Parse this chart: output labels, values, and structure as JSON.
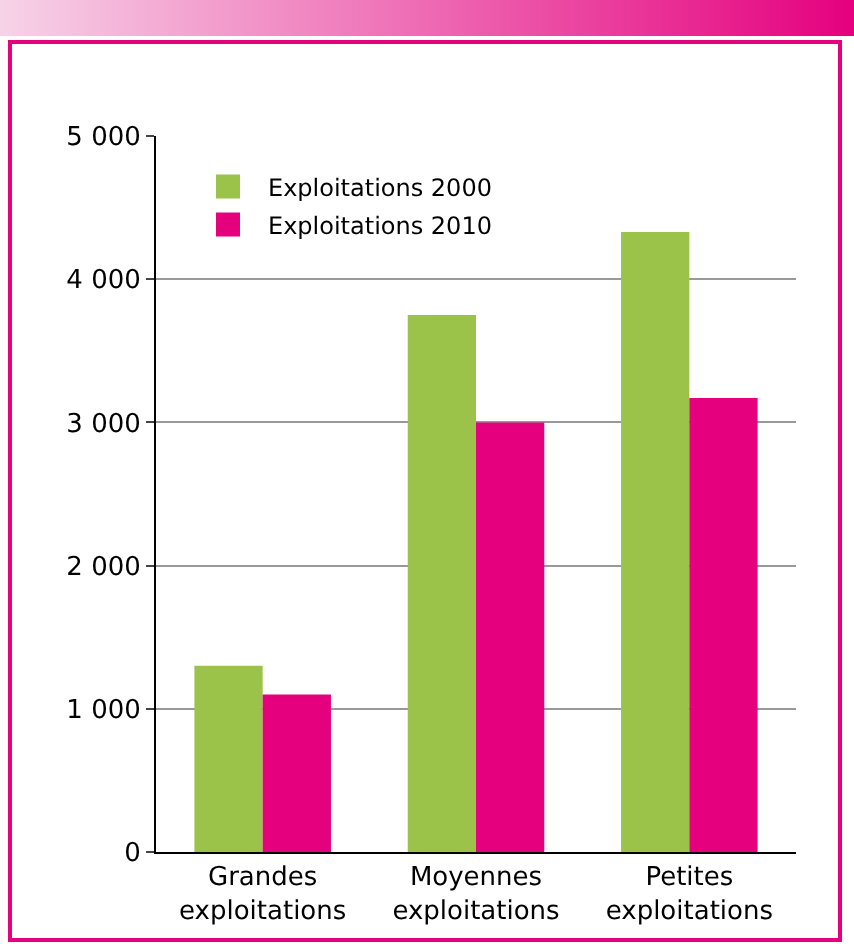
{
  "chart_data": {
    "type": "bar",
    "categories": [
      "Grandes exploitations",
      "Moyennes exploitations",
      "Petites exploitations"
    ],
    "series": [
      {
        "name": "Exploitations 2000",
        "color": "#9bc34a",
        "values": [
          1300,
          3750,
          4330
        ]
      },
      {
        "name": "Exploitations 2010",
        "color": "#e5007e",
        "values": [
          1100,
          3000,
          3170
        ]
      }
    ],
    "ylim": [
      0,
      5000
    ],
    "yticks": [
      {
        "value": 0,
        "label": "0"
      },
      {
        "value": 1000,
        "label": "1 000"
      },
      {
        "value": 2000,
        "label": "2 000"
      },
      {
        "value": 3000,
        "label": "3 000"
      },
      {
        "value": 4000,
        "label": "4 000"
      },
      {
        "value": 5000,
        "label": "5 000"
      }
    ],
    "grid": "y",
    "legend": "top left"
  }
}
